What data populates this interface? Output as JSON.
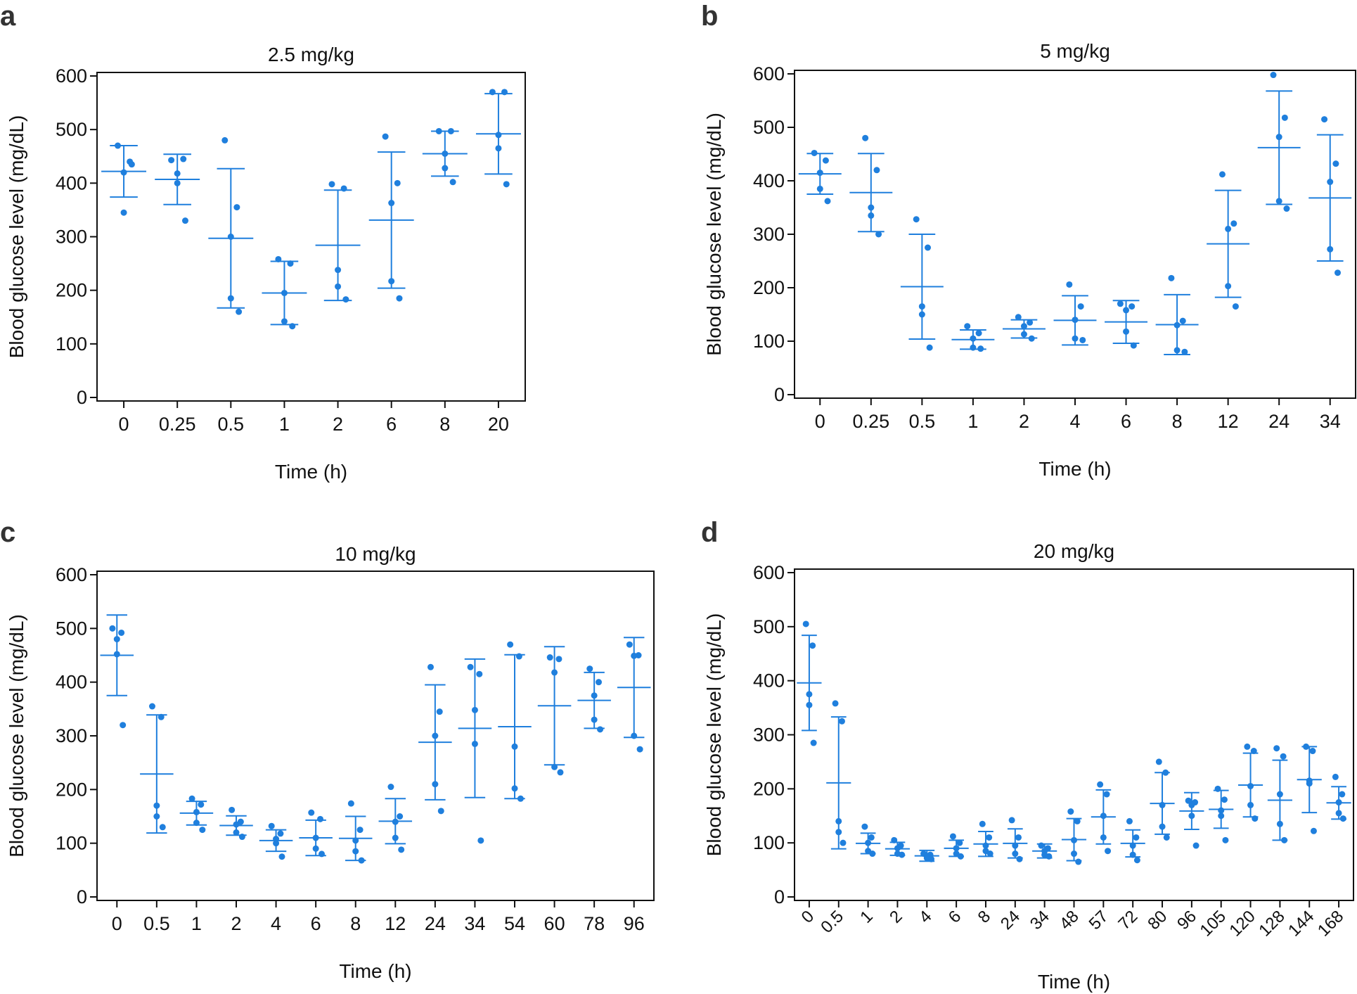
{
  "colors": {
    "series": "#1f7fdd",
    "axis": "#111111"
  },
  "chart_data": [
    {
      "panel": "a",
      "type": "scatter",
      "title": "2.5 mg/kg",
      "xlabel": "Time (h)",
      "ylabel": "Blood glucose level (mg/dL)",
      "categories": [
        "0",
        "0.25",
        "0.5",
        "1",
        "2",
        "6",
        "8",
        "20"
      ],
      "ylim": [
        0,
        600
      ],
      "yticks": [
        0,
        100,
        200,
        300,
        400,
        500,
        600
      ],
      "mean": [
        422,
        407,
        297,
        195,
        284,
        331,
        455,
        492
      ],
      "sd": [
        48,
        47,
        130,
        59,
        103,
        127,
        42,
        75
      ],
      "points": [
        [
          470,
          440,
          420,
          345,
          435
        ],
        [
          443,
          445,
          418,
          400,
          330
        ],
        [
          480,
          355,
          300,
          185,
          160
        ],
        [
          258,
          250,
          195,
          142,
          133
        ],
        [
          398,
          390,
          238,
          207,
          183
        ],
        [
          487,
          400,
          363,
          217,
          185
        ],
        [
          497,
          497,
          455,
          428,
          402
        ],
        [
          570,
          570,
          490,
          465,
          398
        ]
      ],
      "grid": false,
      "legend": "none"
    },
    {
      "panel": "b",
      "type": "scatter",
      "title": "5 mg/kg",
      "xlabel": "Time (h)",
      "ylabel": "Blood glucose level (mg/dL)",
      "categories": [
        "0",
        "0.25",
        "0.5",
        "1",
        "2",
        "4",
        "6",
        "8",
        "12",
        "24",
        "34"
      ],
      "ylim": [
        0,
        600
      ],
      "yticks": [
        0,
        100,
        200,
        300,
        400,
        500,
        600
      ],
      "mean": [
        413,
        378,
        202,
        103,
        123,
        139,
        136,
        131,
        282,
        462,
        368
      ],
      "sd": [
        38,
        73,
        98,
        18,
        17,
        46,
        40,
        56,
        100,
        106,
        118
      ],
      "points": [
        [
          452,
          438,
          415,
          385,
          362
        ],
        [
          480,
          420,
          350,
          335,
          300
        ],
        [
          328,
          275,
          165,
          150,
          88
        ],
        [
          128,
          115,
          105,
          88,
          86
        ],
        [
          145,
          135,
          128,
          113,
          105
        ],
        [
          206,
          165,
          140,
          105,
          102
        ],
        [
          170,
          165,
          158,
          118,
          92
        ],
        [
          218,
          138,
          130,
          83,
          80
        ],
        [
          412,
          320,
          310,
          203,
          165
        ],
        [
          598,
          518,
          482,
          362,
          348
        ],
        [
          515,
          432,
          398,
          272,
          228
        ]
      ],
      "grid": false,
      "legend": "none"
    },
    {
      "panel": "c",
      "type": "scatter",
      "title": "10 mg/kg",
      "xlabel": "Time (h)",
      "ylabel": "Blood glucose level (mg/dL)",
      "categories": [
        "0",
        "0.5",
        "1",
        "2",
        "4",
        "6",
        "8",
        "12",
        "24",
        "34",
        "54",
        "60",
        "78",
        "96"
      ],
      "ylim": [
        0,
        600
      ],
      "yticks": [
        0,
        100,
        200,
        300,
        400,
        500,
        600
      ],
      "mean": [
        450,
        229,
        156,
        133,
        105,
        110,
        109,
        141,
        288,
        314,
        317,
        356,
        366,
        390
      ],
      "sd": [
        75,
        110,
        22,
        18,
        20,
        33,
        41,
        42,
        107,
        129,
        134,
        110,
        52,
        93
      ],
      "points": [
        [
          500,
          492,
          480,
          452,
          320
        ],
        [
          355,
          335,
          170,
          150,
          130
        ],
        [
          183,
          172,
          158,
          138,
          125
        ],
        [
          162,
          140,
          135,
          120,
          112
        ],
        [
          132,
          118,
          108,
          100,
          75
        ],
        [
          157,
          145,
          110,
          90,
          80
        ],
        [
          174,
          125,
          105,
          85,
          68
        ],
        [
          205,
          150,
          140,
          110,
          88
        ],
        [
          428,
          345,
          300,
          210,
          160
        ],
        [
          428,
          415,
          348,
          285,
          105
        ],
        [
          470,
          448,
          280,
          202,
          183
        ],
        [
          446,
          443,
          418,
          242,
          232
        ],
        [
          425,
          400,
          375,
          330,
          312
        ],
        [
          470,
          450,
          449,
          300,
          275
        ]
      ],
      "grid": false,
      "legend": "none"
    },
    {
      "panel": "d",
      "type": "scatter",
      "title": "20 mg/kg",
      "xlabel": "Time (h)",
      "ylabel": "Blood glucose level (mg/dL)",
      "categories": [
        "0",
        "0.5",
        "1",
        "2",
        "4",
        "6",
        "8",
        "24",
        "34",
        "48",
        "57",
        "72",
        "80",
        "96",
        "105",
        "120",
        "128",
        "144",
        "168"
      ],
      "ylim": [
        0,
        600
      ],
      "yticks": [
        0,
        100,
        200,
        300,
        400,
        500,
        600
      ],
      "mean": [
        396,
        211,
        99,
        89,
        76,
        90,
        98,
        99,
        85,
        106,
        148,
        99,
        173,
        159,
        162,
        207,
        179,
        217,
        174
      ],
      "sd": [
        88,
        122,
        19,
        12,
        10,
        15,
        23,
        27,
        13,
        39,
        50,
        25,
        57,
        34,
        35,
        59,
        74,
        61,
        30
      ],
      "points": [
        [
          505,
          465,
          375,
          355,
          285
        ],
        [
          358,
          325,
          140,
          120,
          100
        ],
        [
          130,
          110,
          100,
          85,
          80
        ],
        [
          105,
          95,
          90,
          80,
          78
        ],
        [
          80,
          78,
          75,
          72,
          70
        ],
        [
          112,
          100,
          90,
          80,
          75
        ],
        [
          135,
          110,
          95,
          85,
          80
        ],
        [
          142,
          110,
          95,
          80,
          70
        ],
        [
          95,
          90,
          85,
          78,
          75
        ],
        [
          158,
          140,
          105,
          80,
          65
        ],
        [
          208,
          190,
          150,
          110,
          85
        ],
        [
          140,
          110,
          95,
          78,
          68
        ],
        [
          250,
          230,
          170,
          130,
          110
        ],
        [
          178,
          175,
          170,
          150,
          95
        ],
        [
          200,
          180,
          160,
          150,
          105
        ],
        [
          278,
          270,
          205,
          170,
          145
        ],
        [
          275,
          260,
          190,
          135,
          105
        ],
        [
          278,
          270,
          215,
          210,
          122
        ],
        [
          222,
          190,
          175,
          155,
          145
        ]
      ],
      "grid": false,
      "legend": "none"
    }
  ]
}
